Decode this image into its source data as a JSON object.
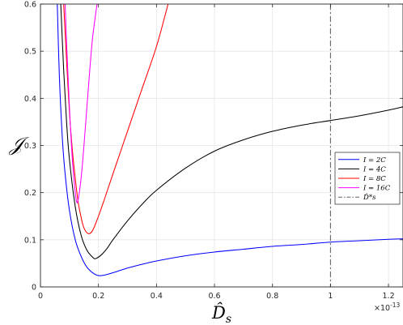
{
  "chart_data": {
    "type": "line",
    "xlabel": "D̂",
    "xlabel_sub": "s",
    "ylabel": "𝒥",
    "x_exponent": "×10",
    "x_exponent_power": "-13",
    "xlim": [
      0,
      1.25
    ],
    "ylim": [
      0,
      0.6
    ],
    "xticks": [
      0,
      0.2,
      0.4,
      0.6,
      0.8,
      1.0,
      1.2
    ],
    "xtick_labels": [
      "0",
      "0.2",
      "0.4",
      "0.6",
      "0.8",
      "1",
      "1.2"
    ],
    "yticks": [
      0,
      0.1,
      0.2,
      0.3,
      0.4,
      0.5,
      0.6
    ],
    "ytick_labels": [
      "0",
      "0.1",
      "0.2",
      "0.3",
      "0.4",
      "0.5",
      "0.6"
    ],
    "grid": true,
    "legend_position": "right",
    "series": [
      {
        "name": "I = 2C",
        "color": "#0000ff",
        "x": [
          0.058,
          0.065,
          0.075,
          0.085,
          0.1,
          0.12,
          0.14,
          0.16,
          0.18,
          0.2,
          0.22,
          0.25,
          0.3,
          0.35,
          0.4,
          0.5,
          0.6,
          0.7,
          0.8,
          0.9,
          1.0,
          1.1,
          1.2,
          1.25
        ],
        "y": [
          0.6,
          0.45,
          0.32,
          0.24,
          0.162,
          0.1,
          0.065,
          0.042,
          0.03,
          0.024,
          0.025,
          0.03,
          0.04,
          0.048,
          0.055,
          0.066,
          0.074,
          0.08,
          0.086,
          0.09,
          0.095,
          0.098,
          0.101,
          0.102
        ]
      },
      {
        "name": "I = 4C",
        "color": "#000000",
        "x": [
          0.07,
          0.08,
          0.09,
          0.1,
          0.12,
          0.14,
          0.16,
          0.18,
          0.19,
          0.21,
          0.23,
          0.25,
          0.3,
          0.35,
          0.4,
          0.5,
          0.6,
          0.7,
          0.8,
          0.9,
          1.0,
          1.1,
          1.2,
          1.25
        ],
        "y": [
          0.6,
          0.46,
          0.35,
          0.27,
          0.17,
          0.11,
          0.078,
          0.063,
          0.06,
          0.068,
          0.082,
          0.1,
          0.14,
          0.175,
          0.205,
          0.252,
          0.288,
          0.312,
          0.33,
          0.343,
          0.353,
          0.363,
          0.375,
          0.382
        ]
      },
      {
        "name": "I = 8C",
        "color": "#ff0000",
        "x": [
          0.08,
          0.09,
          0.1,
          0.11,
          0.12,
          0.13,
          0.14,
          0.15,
          0.165,
          0.18,
          0.2,
          0.22,
          0.25,
          0.3,
          0.35,
          0.4,
          0.44
        ],
        "y": [
          0.6,
          0.48,
          0.37,
          0.29,
          0.23,
          0.18,
          0.148,
          0.125,
          0.113,
          0.12,
          0.15,
          0.185,
          0.24,
          0.33,
          0.42,
          0.51,
          0.6
        ]
      },
      {
        "name": "I = 16C",
        "color": "#ff00ff",
        "x": [
          0.085,
          0.09,
          0.1,
          0.11,
          0.12,
          0.125,
          0.13,
          0.14,
          0.15,
          0.16,
          0.17,
          0.18,
          0.195
        ],
        "y": [
          0.6,
          0.52,
          0.38,
          0.27,
          0.2,
          0.18,
          0.185,
          0.23,
          0.3,
          0.38,
          0.46,
          0.53,
          0.6
        ]
      }
    ],
    "reference_line": {
      "name": "D̂*s",
      "x": 1.0,
      "color": "#666666",
      "style": "dash-dot"
    },
    "legend": [
      {
        "label": "I = 2C",
        "color": "#0000ff"
      },
      {
        "label": "I = 4C",
        "color": "#000000"
      },
      {
        "label": "I = 8C",
        "color": "#ff0000"
      },
      {
        "label": "I = 16C",
        "color": "#ff00ff"
      },
      {
        "label": "D̂*s",
        "color": "#666666"
      }
    ]
  }
}
